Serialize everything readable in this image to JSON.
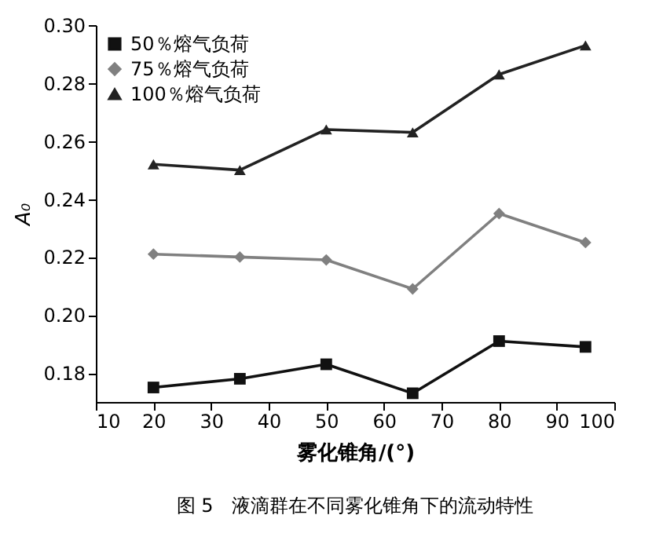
{
  "chart_data": {
    "type": "line",
    "xlabel": "雾化锥角/(°)",
    "ylabel": "A₀",
    "annotations": [
      "图 5　液滴群在不同雾化锥角下的流动特性"
    ],
    "x": [
      20,
      35,
      50,
      65,
      80,
      95
    ],
    "series": [
      {
        "name": "50％熔气负荷",
        "color": "#111111",
        "marker": "square",
        "values": [
          0.175,
          0.178,
          0.183,
          0.173,
          0.191,
          0.189
        ]
      },
      {
        "name": "75％熔气负荷",
        "color": "#808080",
        "marker": "diamond",
        "values": [
          0.221,
          0.22,
          0.219,
          0.209,
          0.235,
          0.225
        ]
      },
      {
        "name": "100％熔气负荷",
        "color": "#222222",
        "marker": "triangle",
        "values": [
          0.252,
          0.25,
          0.264,
          0.263,
          0.283,
          0.293
        ]
      }
    ],
    "xlim": [
      10,
      100
    ],
    "xticks": [
      10,
      20,
      30,
      40,
      50,
      60,
      70,
      80,
      90,
      100
    ],
    "ylim": [
      0.17,
      0.3
    ],
    "yticks": [
      0.18,
      {
        "value": 0.2,
        "label": "0.20"
      },
      0.22,
      0.24,
      0.26,
      0.28,
      {
        "value": 0.3,
        "label": "0.30"
      }
    ],
    "legend": "top left"
  }
}
